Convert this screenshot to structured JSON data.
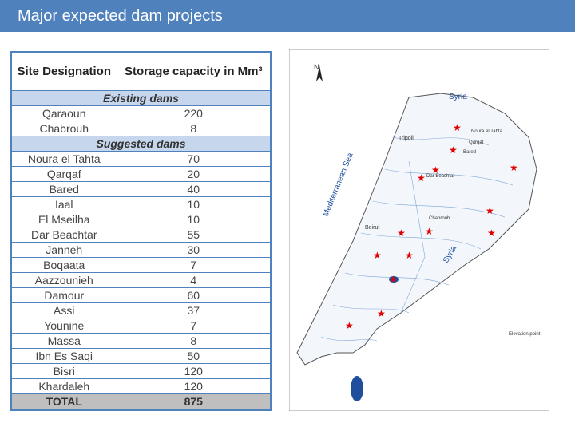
{
  "header": {
    "title": "Major expected dam projects"
  },
  "table": {
    "columns": [
      "Site Designation",
      "Storage capacity in Mm³"
    ],
    "sections": [
      {
        "title": "Existing dams",
        "rows": [
          [
            "Qaraoun",
            220
          ],
          [
            "Chabrouh",
            8
          ]
        ]
      },
      {
        "title": "Suggested dams",
        "rows": [
          [
            "Noura el Tahta",
            70
          ],
          [
            "Qarqaf",
            20
          ],
          [
            "Bared",
            40
          ],
          [
            "Iaal",
            10
          ],
          [
            "El Mseilha",
            10
          ],
          [
            "Dar Beachtar",
            55
          ],
          [
            "Janneh",
            30
          ],
          [
            "Boqaata",
            7
          ],
          [
            "Aazzounieh",
            4
          ],
          [
            "Damour",
            60
          ],
          [
            "Assi",
            37
          ],
          [
            "Younine",
            7
          ],
          [
            "Massa",
            8
          ],
          [
            "Ibn Es Saqi",
            50
          ],
          [
            "Bisri",
            120
          ],
          [
            "Khardaleh",
            120
          ]
        ]
      }
    ],
    "total": [
      "TOTAL",
      875
    ]
  },
  "map": {
    "north": "N",
    "labels": [
      "Syria",
      "Syria",
      "Mediterranean Sea",
      "Tripoli",
      "Beirut",
      "Noura el Tahta",
      "Qarqaf",
      "Bared",
      "Dar Beachtar",
      "Chabrouh",
      "Elevation point"
    ]
  }
}
